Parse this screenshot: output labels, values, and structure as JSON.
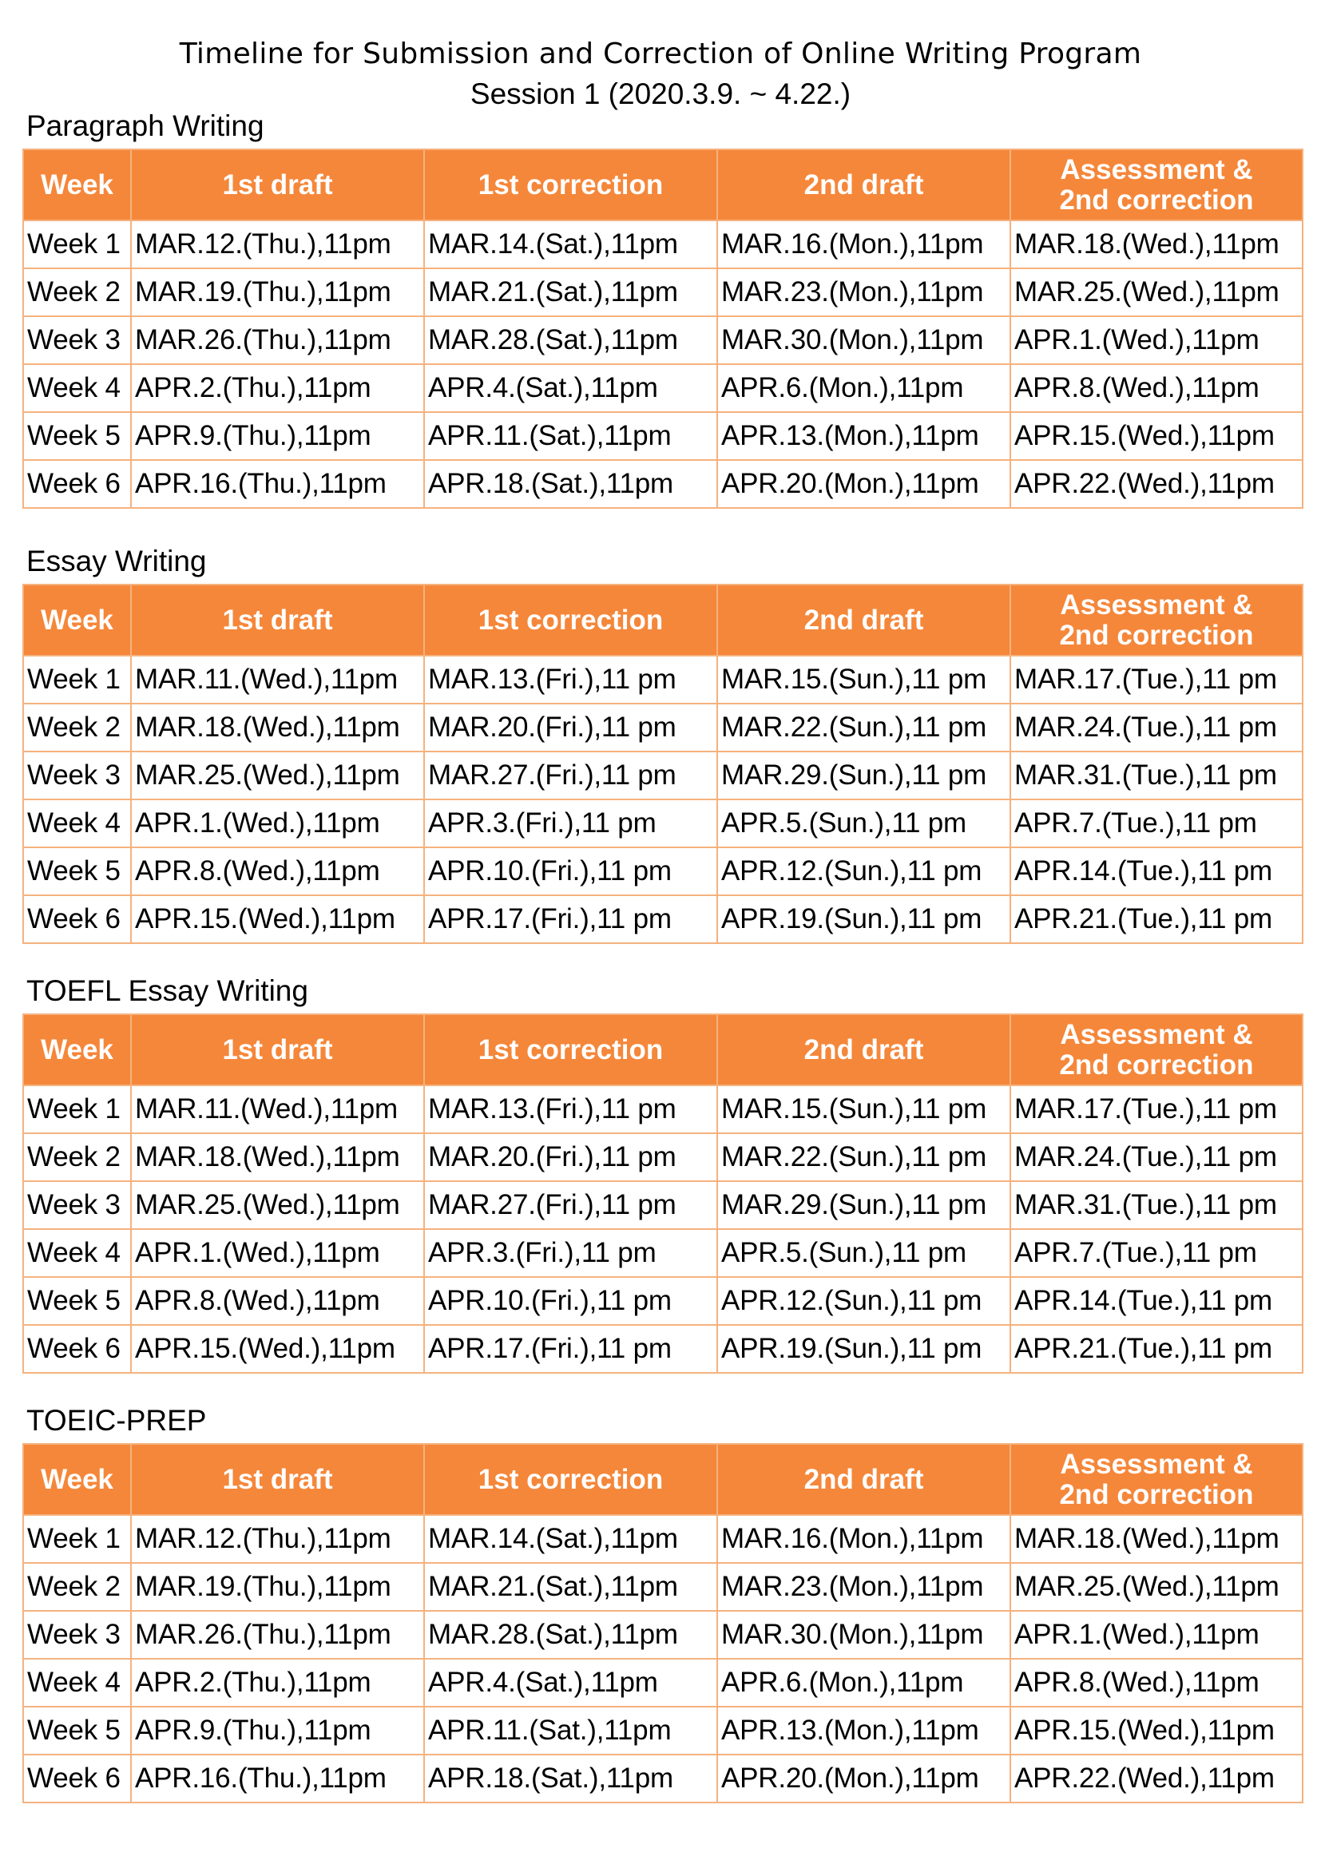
{
  "title": {
    "line1": "Timeline for Submission and Correction of Online Writing Program",
    "line2": "Session 1 (2020.3.9. ~ 4.22.)"
  },
  "colors": {
    "header_bg": "#f5873a",
    "header_text": "#ffffff",
    "border": "#f5b27e"
  },
  "headers": {
    "week": "Week",
    "first_draft": "1st draft",
    "first_correction": "1st correction",
    "second_draft": "2nd draft",
    "assessment_line1": "Assessment &",
    "assessment_line2": "2nd correction"
  },
  "sections": [
    {
      "title": "Paragraph Writing",
      "rows": [
        {
          "week": "Week 1",
          "d1": "MAR.12.(Thu.),11pm",
          "c1": "MAR.14.(Sat.),11pm",
          "d2": "MAR.16.(Mon.),11pm",
          "as": "MAR.18.(Wed.),11pm"
        },
        {
          "week": "Week 2",
          "d1": "MAR.19.(Thu.),11pm",
          "c1": "MAR.21.(Sat.),11pm",
          "d2": "MAR.23.(Mon.),11pm",
          "as": "MAR.25.(Wed.),11pm"
        },
        {
          "week": "Week 3",
          "d1": "MAR.26.(Thu.),11pm",
          "c1": "MAR.28.(Sat.),11pm",
          "d2": "MAR.30.(Mon.),11pm",
          "as": "APR.1.(Wed.),11pm"
        },
        {
          "week": "Week 4",
          "d1": "APR.2.(Thu.),11pm",
          "c1": "APR.4.(Sat.),11pm",
          "d2": "APR.6.(Mon.),11pm",
          "as": "APR.8.(Wed.),11pm"
        },
        {
          "week": "Week 5",
          "d1": "APR.9.(Thu.),11pm",
          "c1": "APR.11.(Sat.),11pm",
          "d2": "APR.13.(Mon.),11pm",
          "as": "APR.15.(Wed.),11pm"
        },
        {
          "week": "Week 6",
          "d1": "APR.16.(Thu.),11pm",
          "c1": "APR.18.(Sat.),11pm",
          "d2": "APR.20.(Mon.),11pm",
          "as": "APR.22.(Wed.),11pm"
        }
      ]
    },
    {
      "title": "Essay Writing",
      "rows": [
        {
          "week": "Week 1",
          "d1": "MAR.11.(Wed.),11pm",
          "c1": "MAR.13.(Fri.),11 pm",
          "d2": "MAR.15.(Sun.),11 pm",
          "as": "MAR.17.(Tue.),11 pm"
        },
        {
          "week": "Week 2",
          "d1": "MAR.18.(Wed.),11pm",
          "c1": "MAR.20.(Fri.),11 pm",
          "d2": "MAR.22.(Sun.),11 pm",
          "as": "MAR.24.(Tue.),11 pm"
        },
        {
          "week": "Week 3",
          "d1": "MAR.25.(Wed.),11pm",
          "c1": "MAR.27.(Fri.),11 pm",
          "d2": "MAR.29.(Sun.),11 pm",
          "as": "MAR.31.(Tue.),11 pm"
        },
        {
          "week": "Week 4",
          "d1": "APR.1.(Wed.),11pm",
          "c1": "APR.3.(Fri.),11 pm",
          "d2": "APR.5.(Sun.),11 pm",
          "as": "APR.7.(Tue.),11 pm"
        },
        {
          "week": "Week 5",
          "d1": "APR.8.(Wed.),11pm",
          "c1": "APR.10.(Fri.),11 pm",
          "d2": "APR.12.(Sun.),11 pm",
          "as": "APR.14.(Tue.),11 pm"
        },
        {
          "week": "Week 6",
          "d1": "APR.15.(Wed.),11pm",
          "c1": "APR.17.(Fri.),11 pm",
          "d2": "APR.19.(Sun.),11 pm",
          "as": "APR.21.(Tue.),11 pm"
        }
      ]
    },
    {
      "title": "TOEFL Essay Writing",
      "rows": [
        {
          "week": "Week 1",
          "d1": "MAR.11.(Wed.),11pm",
          "c1": "MAR.13.(Fri.),11 pm",
          "d2": "MAR.15.(Sun.),11 pm",
          "as": "MAR.17.(Tue.),11 pm"
        },
        {
          "week": "Week 2",
          "d1": "MAR.18.(Wed.),11pm",
          "c1": "MAR.20.(Fri.),11 pm",
          "d2": "MAR.22.(Sun.),11 pm",
          "as": "MAR.24.(Tue.),11 pm"
        },
        {
          "week": "Week 3",
          "d1": "MAR.25.(Wed.),11pm",
          "c1": "MAR.27.(Fri.),11 pm",
          "d2": "MAR.29.(Sun.),11 pm",
          "as": "MAR.31.(Tue.),11 pm"
        },
        {
          "week": "Week 4",
          "d1": "APR.1.(Wed.),11pm",
          "c1": "APR.3.(Fri.),11 pm",
          "d2": "APR.5.(Sun.),11 pm",
          "as": "APR.7.(Tue.),11 pm"
        },
        {
          "week": "Week 5",
          "d1": "APR.8.(Wed.),11pm",
          "c1": "APR.10.(Fri.),11 pm",
          "d2": "APR.12.(Sun.),11 pm",
          "as": "APR.14.(Tue.),11 pm"
        },
        {
          "week": "Week 6",
          "d1": "APR.15.(Wed.),11pm",
          "c1": "APR.17.(Fri.),11 pm",
          "d2": "APR.19.(Sun.),11 pm",
          "as": "APR.21.(Tue.),11 pm"
        }
      ]
    },
    {
      "title": "TOEIC-PREP",
      "rows": [
        {
          "week": "Week 1",
          "d1": "MAR.12.(Thu.),11pm",
          "c1": "MAR.14.(Sat.),11pm",
          "d2": "MAR.16.(Mon.),11pm",
          "as": "MAR.18.(Wed.),11pm"
        },
        {
          "week": "Week 2",
          "d1": "MAR.19.(Thu.),11pm",
          "c1": "MAR.21.(Sat.),11pm",
          "d2": "MAR.23.(Mon.),11pm",
          "as": "MAR.25.(Wed.),11pm"
        },
        {
          "week": "Week 3",
          "d1": "MAR.26.(Thu.),11pm",
          "c1": "MAR.28.(Sat.),11pm",
          "d2": "MAR.30.(Mon.),11pm",
          "as": "APR.1.(Wed.),11pm"
        },
        {
          "week": "Week 4",
          "d1": "APR.2.(Thu.),11pm",
          "c1": "APR.4.(Sat.),11pm",
          "d2": "APR.6.(Mon.),11pm",
          "as": "APR.8.(Wed.),11pm"
        },
        {
          "week": "Week 5",
          "d1": "APR.9.(Thu.),11pm",
          "c1": "APR.11.(Sat.),11pm",
          "d2": "APR.13.(Mon.),11pm",
          "as": "APR.15.(Wed.),11pm"
        },
        {
          "week": "Week 6",
          "d1": "APR.16.(Thu.),11pm",
          "c1": "APR.18.(Sat.),11pm",
          "d2": "APR.20.(Mon.),11pm",
          "as": "APR.22.(Wed.),11pm"
        }
      ]
    }
  ]
}
